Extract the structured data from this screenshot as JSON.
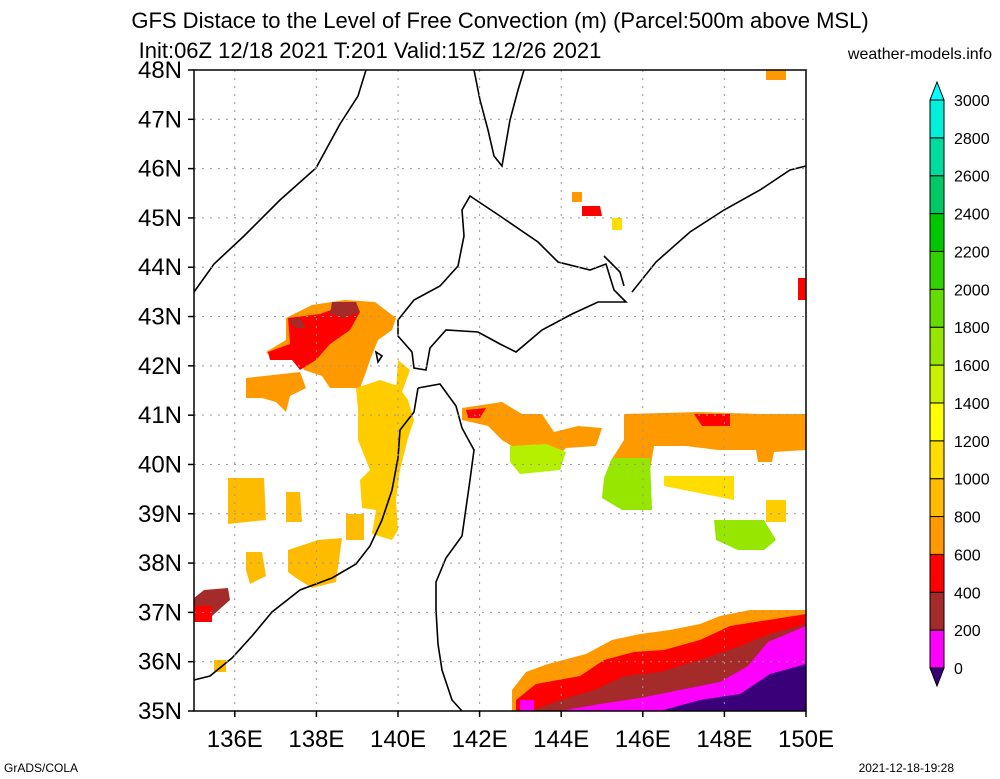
{
  "title": {
    "line1": "GFS Distace to the Level of Free Convection (m) (Parcel:500m above MSL)",
    "line2": "Init:06Z 12/18 2021 T:201 Valid:15Z 12/26 2021"
  },
  "site": "weather-models.info",
  "credits": {
    "left": "GrADS/COLA",
    "right": "2021-12-18-19:28"
  },
  "map": {
    "lon_range": [
      135,
      150
    ],
    "lat_range": [
      35,
      48
    ],
    "lat_labels": [
      "35N",
      "36N",
      "37N",
      "38N",
      "39N",
      "40N",
      "41N",
      "42N",
      "43N",
      "44N",
      "45N",
      "46N",
      "47N",
      "48N"
    ],
    "lon_labels": [
      "136E",
      "138E",
      "140E",
      "142E",
      "144E",
      "146E",
      "148E",
      "150E"
    ],
    "grid": true
  },
  "colorbar": {
    "labels": [
      "0",
      "200",
      "400",
      "600",
      "800",
      "1000",
      "1200",
      "1400",
      "1600",
      "1800",
      "2000",
      "2200",
      "2400",
      "2600",
      "2800",
      "3000"
    ],
    "colors": [
      "#3a007a",
      "#ff00ff",
      "#a52a2a",
      "#ff0000",
      "#ff9900",
      "#ffbb00",
      "#ffdd00",
      "#ffff00",
      "#c8f000",
      "#96e600",
      "#64dc00",
      "#32d200",
      "#00c800",
      "#00c864",
      "#00dca0",
      "#00f0dc",
      "#00ffff"
    ]
  }
}
